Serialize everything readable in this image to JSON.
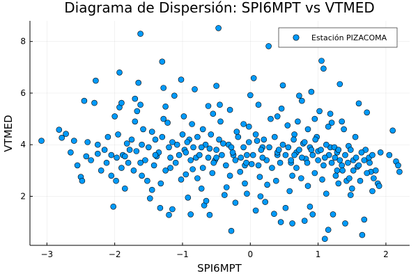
{
  "chart_data": {
    "type": "scatter",
    "title": "Diagrama de Dispersión: SPI6MPT vs VTMED",
    "xlabel": "SPI6MPT",
    "ylabel": "VTMED",
    "xlim": [
      -3.25,
      2.35
    ],
    "ylim": [
      0.1,
      8.8
    ],
    "xticks": [
      -3,
      -2,
      -1,
      0,
      1,
      2
    ],
    "yticks": [
      2,
      4,
      6,
      8
    ],
    "xtick_labels": [
      "−3",
      "−2",
      "−1",
      "0",
      "1",
      "2"
    ],
    "ytick_labels": [
      "2",
      "4",
      "6",
      "8"
    ],
    "grid": true,
    "legend_position": "top-right",
    "colors": {
      "marker": "#009AFA",
      "marker_edge": "#000000"
    },
    "series": [
      {
        "name": "Estación PIZACOMA",
        "points": [
          [
            -3.08,
            4.15
          ],
          [
            -2.82,
            4.58
          ],
          [
            -2.78,
            4.27
          ],
          [
            -2.72,
            4.42
          ],
          [
            -2.6,
            4.15
          ],
          [
            -2.5,
            2.75
          ],
          [
            -2.48,
            2.6
          ],
          [
            -2.45,
            5.7
          ],
          [
            -2.4,
            4.1
          ],
          [
            -2.3,
            5.62
          ],
          [
            -2.28,
            6.48
          ],
          [
            -2.25,
            3.65
          ],
          [
            -2.2,
            3.0
          ],
          [
            -2.12,
            3.3
          ],
          [
            -2.05,
            2.8
          ],
          [
            -2.0,
            5.1
          ],
          [
            -2.02,
            1.6
          ],
          [
            -1.97,
            3.5
          ],
          [
            -1.93,
            5.45
          ],
          [
            -1.9,
            5.62
          ],
          [
            -1.93,
            6.8
          ],
          [
            -1.85,
            2.3
          ],
          [
            -1.82,
            4.05
          ],
          [
            -1.78,
            3.8
          ],
          [
            -1.7,
            5.78
          ],
          [
            -1.67,
            5.3
          ],
          [
            -1.62,
            8.3
          ],
          [
            -1.65,
            6.4
          ],
          [
            -1.62,
            5.55
          ],
          [
            -1.58,
            4.6
          ],
          [
            -1.52,
            2.6
          ],
          [
            -1.48,
            1.92
          ],
          [
            -1.45,
            2.25
          ],
          [
            -1.4,
            4.2
          ],
          [
            -1.38,
            3.55
          ],
          [
            -1.33,
            1.55
          ],
          [
            -1.3,
            7.22
          ],
          [
            -1.28,
            6.2
          ],
          [
            -1.25,
            5.48
          ],
          [
            -1.22,
            4.85
          ],
          [
            -1.2,
            1.28
          ],
          [
            -1.18,
            3.1
          ],
          [
            -1.15,
            1.5
          ],
          [
            -1.12,
            5.9
          ],
          [
            -1.08,
            4.0
          ],
          [
            -1.02,
            6.52
          ],
          [
            -0.98,
            5.1
          ],
          [
            -0.95,
            2.85
          ],
          [
            -0.92,
            1.95
          ],
          [
            -0.9,
            4.2
          ],
          [
            -0.88,
            1.3
          ],
          [
            -0.85,
            3.05
          ],
          [
            -0.82,
            6.15
          ],
          [
            -0.8,
            3.5
          ],
          [
            -0.72,
            2.3
          ],
          [
            -0.7,
            4.6
          ],
          [
            -0.68,
            1.65
          ],
          [
            -0.65,
            1.82
          ],
          [
            -0.6,
            1.28
          ],
          [
            -0.6,
            3.85
          ],
          [
            -0.55,
            5.2
          ],
          [
            -0.52,
            3.4
          ],
          [
            -0.5,
            6.28
          ],
          [
            -0.47,
            8.52
          ],
          [
            -0.45,
            5.55
          ],
          [
            -0.4,
            4.05
          ],
          [
            -0.38,
            2.05
          ],
          [
            -0.35,
            2.35
          ],
          [
            -0.28,
            0.66
          ],
          [
            -0.25,
            3.6
          ],
          [
            -0.22,
            1.75
          ],
          [
            -0.2,
            4.5
          ],
          [
            -0.15,
            2.95
          ],
          [
            -0.1,
            4.8
          ],
          [
            -0.08,
            3.2
          ],
          [
            -0.05,
            2.1
          ],
          [
            0.0,
            5.92
          ],
          [
            0.02,
            3.25
          ],
          [
            0.05,
            6.58
          ],
          [
            0.08,
            1.45
          ],
          [
            0.1,
            4.15
          ],
          [
            0.15,
            2.0
          ],
          [
            0.18,
            3.9
          ],
          [
            0.22,
            1.78
          ],
          [
            0.25,
            2.45
          ],
          [
            0.27,
            7.82
          ],
          [
            0.3,
            5.0
          ],
          [
            0.35,
            1.32
          ],
          [
            0.4,
            3.6
          ],
          [
            0.45,
            1.0
          ],
          [
            0.48,
            6.3
          ],
          [
            0.52,
            1.55
          ],
          [
            0.55,
            4.75
          ],
          [
            0.58,
            2.2
          ],
          [
            0.6,
            3.3
          ],
          [
            0.62,
            0.95
          ],
          [
            0.65,
            4.4
          ],
          [
            0.68,
            3.7
          ],
          [
            0.72,
            5.9
          ],
          [
            0.75,
            2.7
          ],
          [
            0.78,
            4.05
          ],
          [
            0.8,
            1.05
          ],
          [
            0.82,
            3.45
          ],
          [
            0.85,
            4.6
          ],
          [
            0.88,
            1.6
          ],
          [
            0.9,
            6.05
          ],
          [
            0.92,
            1.3
          ],
          [
            0.95,
            2.9
          ],
          [
            0.98,
            4.3
          ],
          [
            1.0,
            3.75
          ],
          [
            1.02,
            5.3
          ],
          [
            1.05,
            7.25
          ],
          [
            1.08,
            6.95
          ],
          [
            1.1,
            0.35
          ],
          [
            1.12,
            2.1
          ],
          [
            1.15,
            0.7
          ],
          [
            1.18,
            3.9
          ],
          [
            1.2,
            4.85
          ],
          [
            1.22,
            1.3
          ],
          [
            1.25,
            3.5
          ],
          [
            1.28,
            3.0
          ],
          [
            1.3,
            2.5
          ],
          [
            1.32,
            6.35
          ],
          [
            1.35,
            3.2
          ],
          [
            1.38,
            4.6
          ],
          [
            1.4,
            0.95
          ],
          [
            1.42,
            2.6
          ],
          [
            1.45,
            3.95
          ],
          [
            1.48,
            2.05
          ],
          [
            1.5,
            2.3
          ],
          [
            1.52,
            3.4
          ],
          [
            1.55,
            4.3
          ],
          [
            1.58,
            3.15
          ],
          [
            1.6,
            5.6
          ],
          [
            1.62,
            2.6
          ],
          [
            1.65,
            0.5
          ],
          [
            1.68,
            1.1
          ],
          [
            1.7,
            3.8
          ],
          [
            1.72,
            5.25
          ],
          [
            1.75,
            3.5
          ],
          [
            1.78,
            2.95
          ],
          [
            1.8,
            2.2
          ],
          [
            1.82,
            2.7
          ],
          [
            1.85,
            3.0
          ],
          [
            1.88,
            2.5
          ],
          [
            1.9,
            2.4
          ],
          [
            1.92,
            3.7
          ],
          [
            2.05,
            3.6
          ],
          [
            2.1,
            4.55
          ],
          [
            2.15,
            3.35
          ],
          [
            2.18,
            3.2
          ],
          [
            2.2,
            2.95
          ],
          [
            -2.65,
            3.7
          ],
          [
            -2.55,
            3.2
          ],
          [
            -2.35,
            3.4
          ],
          [
            -2.15,
            3.8
          ],
          [
            -2.1,
            4.3
          ],
          [
            -2.05,
            3.6
          ],
          [
            -1.95,
            4.4
          ],
          [
            -1.9,
            3.1
          ],
          [
            -1.88,
            3.6
          ],
          [
            -1.8,
            3.3
          ],
          [
            -1.75,
            4.2
          ],
          [
            -1.72,
            3.0
          ],
          [
            -1.68,
            3.75
          ],
          [
            -1.6,
            4.0
          ],
          [
            -1.55,
            3.4
          ],
          [
            -1.5,
            3.9
          ],
          [
            -1.45,
            4.5
          ],
          [
            -1.42,
            3.2
          ],
          [
            -1.35,
            3.7
          ],
          [
            -1.3,
            4.3
          ],
          [
            -1.25,
            3.0
          ],
          [
            -1.2,
            3.9
          ],
          [
            -1.15,
            4.1
          ],
          [
            -1.1,
            3.3
          ],
          [
            -1.05,
            3.6
          ],
          [
            -1.0,
            4.4
          ],
          [
            -0.97,
            3.8
          ],
          [
            -0.93,
            4.1
          ],
          [
            -0.88,
            3.4
          ],
          [
            -0.84,
            3.9
          ],
          [
            -0.78,
            4.3
          ],
          [
            -0.75,
            3.6
          ],
          [
            -0.7,
            3.1
          ],
          [
            -0.66,
            4.0
          ],
          [
            -0.62,
            3.5
          ],
          [
            -0.58,
            4.4
          ],
          [
            -0.54,
            3.3
          ],
          [
            -0.5,
            3.8
          ],
          [
            -0.46,
            4.2
          ],
          [
            -0.42,
            3.6
          ],
          [
            -0.36,
            3.2
          ],
          [
            -0.32,
            4.0
          ],
          [
            -0.26,
            3.7
          ],
          [
            -0.22,
            3.4
          ],
          [
            -0.18,
            4.3
          ],
          [
            -0.14,
            3.5
          ],
          [
            -0.1,
            3.9
          ],
          [
            -0.06,
            3.3
          ],
          [
            -0.02,
            4.1
          ],
          [
            0.04,
            3.6
          ],
          [
            0.08,
            4.4
          ],
          [
            0.12,
            3.2
          ],
          [
            0.16,
            3.8
          ],
          [
            0.2,
            4.2
          ],
          [
            0.24,
            3.4
          ],
          [
            0.28,
            3.9
          ],
          [
            0.32,
            3.1
          ],
          [
            0.36,
            4.3
          ],
          [
            0.4,
            3.7
          ],
          [
            0.44,
            3.3
          ],
          [
            0.48,
            4.0
          ],
          [
            0.52,
            3.6
          ],
          [
            0.56,
            3.9
          ],
          [
            0.6,
            3.4
          ],
          [
            0.64,
            4.2
          ],
          [
            0.68,
            3.1
          ],
          [
            0.72,
            3.8
          ],
          [
            0.76,
            3.5
          ],
          [
            0.8,
            4.1
          ],
          [
            0.84,
            3.3
          ],
          [
            0.88,
            3.9
          ],
          [
            0.92,
            3.6
          ],
          [
            0.96,
            4.2
          ],
          [
            1.0,
            3.4
          ],
          [
            1.04,
            3.8
          ],
          [
            1.08,
            3.2
          ],
          [
            1.12,
            4.0
          ],
          [
            1.16,
            3.6
          ],
          [
            1.2,
            3.3
          ],
          [
            1.24,
            3.9
          ],
          [
            1.28,
            3.7
          ],
          [
            1.32,
            3.4
          ],
          [
            1.36,
            3.0
          ],
          [
            1.4,
            3.6
          ],
          [
            1.44,
            3.3
          ],
          [
            1.48,
            3.8
          ],
          [
            1.52,
            3.0
          ],
          [
            1.56,
            3.5
          ],
          [
            1.6,
            3.2
          ],
          [
            1.64,
            3.7
          ],
          [
            1.68,
            3.4
          ],
          [
            1.72,
            2.9
          ],
          [
            1.76,
            3.3
          ],
          [
            1.8,
            3.6
          ],
          [
            -1.85,
            3.55
          ],
          [
            -1.62,
            3.3
          ],
          [
            -1.4,
            3.6
          ],
          [
            -1.18,
            3.5
          ],
          [
            -0.95,
            3.7
          ],
          [
            -0.72,
            3.9
          ],
          [
            -0.5,
            3.5
          ],
          [
            -0.28,
            3.9
          ],
          [
            -0.05,
            3.6
          ],
          [
            0.18,
            3.5
          ],
          [
            0.42,
            3.8
          ],
          [
            0.65,
            3.6
          ],
          [
            0.9,
            3.8
          ],
          [
            1.1,
            3.5
          ],
          [
            1.3,
            3.8
          ],
          [
            -1.98,
            2.6
          ],
          [
            -1.6,
            2.8
          ],
          [
            -1.32,
            2.5
          ],
          [
            -1.02,
            2.65
          ],
          [
            -0.78,
            2.7
          ],
          [
            -0.56,
            2.9
          ],
          [
            -0.3,
            2.8
          ],
          [
            -0.08,
            2.5
          ],
          [
            0.14,
            2.75
          ],
          [
            0.38,
            2.6
          ],
          [
            0.62,
            2.8
          ],
          [
            0.85,
            2.4
          ],
          [
            1.06,
            2.65
          ],
          [
            1.26,
            2.8
          ],
          [
            1.46,
            2.7
          ],
          [
            -1.7,
            4.9
          ],
          [
            -1.28,
            5.0
          ],
          [
            -0.86,
            4.8
          ],
          [
            -0.44,
            4.9
          ],
          [
            -0.02,
            4.7
          ],
          [
            0.4,
            5.1
          ],
          [
            0.7,
            4.9
          ],
          [
            0.95,
            5.0
          ],
          [
            1.15,
            4.7
          ],
          [
            1.35,
            4.9
          ],
          [
            -2.25,
            4.0
          ],
          [
            -2.42,
            3.55
          ],
          [
            -0.62,
            5.5
          ],
          [
            -0.3,
            5.35
          ],
          [
            0.12,
            5.55
          ],
          [
            0.46,
            5.4
          ],
          [
            0.76,
            5.7
          ],
          [
            1.18,
            5.2
          ]
        ]
      }
    ]
  }
}
